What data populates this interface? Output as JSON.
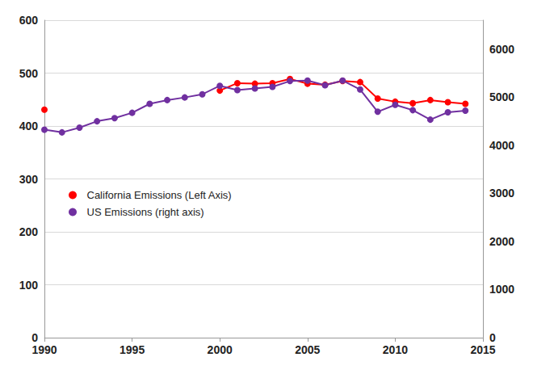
{
  "chart_data": {
    "type": "line",
    "x": [
      1990,
      1991,
      1992,
      1993,
      1994,
      1995,
      1996,
      1997,
      1998,
      1999,
      2000,
      2001,
      2002,
      2003,
      2004,
      2005,
      2006,
      2007,
      2008,
      2009,
      2010,
      2011,
      2012,
      2013,
      2014
    ],
    "series": [
      {
        "name": "California Emissions (Left Axis)",
        "color": "#ff0000",
        "marker": "circle",
        "values": [
          431,
          null,
          null,
          null,
          null,
          null,
          null,
          null,
          null,
          null,
          467,
          481,
          480,
          481,
          489,
          480,
          478,
          485,
          483,
          452,
          446,
          443,
          449,
          445,
          442
        ]
      },
      {
        "name": "US Emissions (right axis)",
        "color": "#7030a0",
        "marker": "circle",
        "axis": "y2",
        "values": [
          4323,
          4268,
          4367,
          4499,
          4565,
          4675,
          4862,
          4939,
          4994,
          5060,
          5236,
          5148,
          5181,
          5214,
          5335,
          5346,
          5247,
          5346,
          5159,
          4697,
          4840,
          4730,
          4532,
          4686,
          4719
        ]
      }
    ],
    "xlim": [
      1990,
      2015
    ],
    "xticks": [
      1990,
      1995,
      2000,
      2005,
      2010,
      2015
    ],
    "ylim": [
      0,
      600
    ],
    "yticks": [
      0,
      100,
      200,
      300,
      400,
      500,
      600
    ],
    "y2lim": [
      0,
      6600
    ],
    "y2ticks": [
      0,
      1000,
      2000,
      3000,
      4000,
      5000,
      6000
    ],
    "grid": true,
    "legend": "left"
  }
}
